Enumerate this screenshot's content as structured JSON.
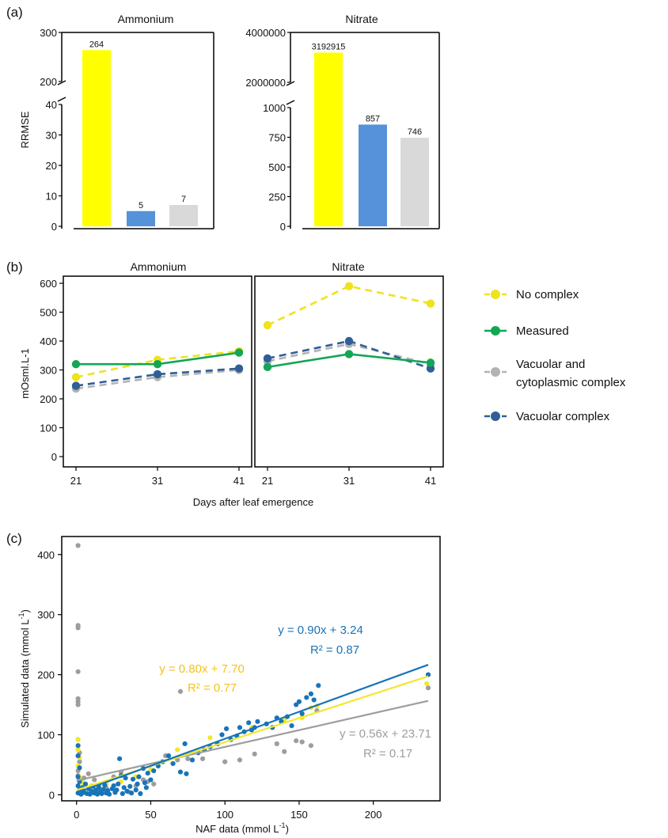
{
  "figure": {
    "panels": [
      "(a)",
      "(b)",
      "(c)"
    ]
  },
  "colors": {
    "no_complex": "#efe21f",
    "measured": "#13a654",
    "vac_cyto": "#b3b3b3",
    "vacuolar": "#2f5f96",
    "bar_yellow": "#ffff00",
    "bar_blue": "#5592d9",
    "bar_grey": "#d9d9d9",
    "sc_yellow": "#f2e82c",
    "sc_blue": "#1874b8",
    "sc_grey": "#9d9d9d",
    "eq_yellow": "#f5c21b"
  },
  "legend": [
    {
      "name": "No complex",
      "color": "#efe21f",
      "dashed": true
    },
    {
      "name": "Measured",
      "color": "#13a654",
      "dashed": false
    },
    {
      "name": "Vacuolar and\ncytoplasmic complex",
      "color": "#b3b3b3",
      "dashed": true
    },
    {
      "name": "Vacuolar complex",
      "color": "#2f5f96",
      "dashed": true
    }
  ],
  "chart_data": [
    {
      "panel": "(a)",
      "type": "bar",
      "title": "Ammonium",
      "ylabel": "RRMSE",
      "axis_break": true,
      "yticks_lower": [
        "0",
        "10",
        "20",
        "30",
        "40"
      ],
      "yticks_upper": [
        "200",
        "300"
      ],
      "ylim_lower": [
        0,
        40
      ],
      "ylim_upper": [
        200,
        300
      ],
      "bars": [
        {
          "value": 264,
          "label": "264",
          "color": "#ffff00"
        },
        {
          "value": 5,
          "label": "5",
          "color": "#5592d9"
        },
        {
          "value": 7,
          "label": "7",
          "color": "#d9d9d9"
        }
      ]
    },
    {
      "panel": "(a)",
      "type": "bar",
      "title": "Nitrate",
      "axis_break": true,
      "yticks_lower": [
        "0",
        "250",
        "500",
        "750",
        "1000"
      ],
      "yticks_upper": [
        "2000000",
        "4000000"
      ],
      "ylim_lower": [
        0,
        1000
      ],
      "ylim_upper": [
        2000000,
        4000000
      ],
      "bars": [
        {
          "value": 3192915,
          "label": "3192915",
          "color": "#ffff00"
        },
        {
          "value": 857,
          "label": "857",
          "color": "#5592d9"
        },
        {
          "value": 746,
          "label": "746",
          "color": "#d9d9d9"
        }
      ]
    },
    {
      "panel": "(b)",
      "type": "line",
      "facets": [
        "Ammonium",
        "Nitrate"
      ],
      "ylabel": "mOsml.L-1",
      "xlabel": "Days after leaf emergence",
      "x": [
        21,
        31,
        41
      ],
      "ylim": [
        0,
        620
      ],
      "yticks": [
        0,
        100,
        200,
        300,
        400,
        500,
        600
      ],
      "series": [
        {
          "name": "No complex",
          "dashed": true,
          "Ammonium": [
            275,
            335,
            365
          ],
          "Nitrate": [
            455,
            590,
            530
          ]
        },
        {
          "name": "Vacuolar and\ncytoplasmic complex",
          "dashed": true,
          "Ammonium": [
            235,
            275,
            300
          ],
          "Nitrate": [
            330,
            390,
            320
          ]
        },
        {
          "name": "Vacuolar complex",
          "dashed": true,
          "Ammonium": [
            245,
            285,
            305
          ],
          "Nitrate": [
            340,
            400,
            305
          ]
        },
        {
          "name": "Measured",
          "dashed": false,
          "Ammonium": [
            320,
            320,
            360
          ],
          "Nitrate": [
            310,
            355,
            325
          ]
        }
      ]
    },
    {
      "panel": "(c)",
      "type": "scatter",
      "xlabel": "NAF data (mmol L",
      "ylabel": "Simulated data (mmol L",
      "unit_sup": "-1",
      "unit_close": ")",
      "xlim": [
        -10,
        245
      ],
      "ylim": [
        -10,
        430
      ],
      "xticks": [
        0,
        50,
        100,
        150,
        200
      ],
      "yticks": [
        0,
        100,
        200,
        300,
        400
      ],
      "equations": [
        {
          "eq": "y = 0.90x + 3.24",
          "r2": "R² = 0.87",
          "color": "#1874b8"
        },
        {
          "eq": "y = 0.80x + 7.70",
          "r2": "R² = 0.77",
          "color": "#f5c21b"
        },
        {
          "eq": "y = 0.56x + 23.71",
          "r2": "R² = 0.17",
          "color": "#9d9d9d"
        }
      ],
      "fits": [
        {
          "slope": 0.56,
          "intercept": 23.71,
          "x": [
            0,
            237
          ],
          "color": "#9d9d9d"
        },
        {
          "slope": 0.8,
          "intercept": 7.7,
          "x": [
            0,
            237
          ],
          "color": "#f2e82c"
        },
        {
          "slope": 0.9,
          "intercept": 3.24,
          "x": [
            0,
            237
          ],
          "color": "#1874b8"
        }
      ],
      "series": [
        {
          "color": "#9d9d9d",
          "points": [
            [
              1,
              415
            ],
            [
              1,
              282
            ],
            [
              1,
              278
            ],
            [
              1,
              205
            ],
            [
              1,
              160
            ],
            [
              1,
              155
            ],
            [
              1,
              150
            ],
            [
              1,
              92
            ],
            [
              2,
              70
            ],
            [
              2,
              55
            ],
            [
              1,
              40
            ],
            [
              1,
              32
            ],
            [
              2,
              25
            ],
            [
              3,
              22
            ],
            [
              5,
              28
            ],
            [
              8,
              35
            ],
            [
              12,
              25
            ],
            [
              15,
              15
            ],
            [
              20,
              12
            ],
            [
              25,
              30
            ],
            [
              30,
              38
            ],
            [
              35,
              5
            ],
            [
              40,
              15
            ],
            [
              45,
              25
            ],
            [
              48,
              22
            ],
            [
              52,
              18
            ],
            [
              60,
              65
            ],
            [
              68,
              58
            ],
            [
              70,
              172
            ],
            [
              75,
              60
            ],
            [
              85,
              60
            ],
            [
              100,
              55
            ],
            [
              110,
              58
            ],
            [
              120,
              68
            ],
            [
              135,
              85
            ],
            [
              140,
              72
            ],
            [
              148,
              90
            ],
            [
              152,
              88
            ],
            [
              158,
              82
            ],
            [
              162,
              140
            ],
            [
              237,
              178
            ]
          ]
        },
        {
          "color": "#f2e82c",
          "points": [
            [
              1,
              92
            ],
            [
              1,
              75
            ],
            [
              2,
              62
            ],
            [
              1,
              48
            ],
            [
              2,
              30
            ],
            [
              4,
              20
            ],
            [
              10,
              15
            ],
            [
              20,
              18
            ],
            [
              30,
              22
            ],
            [
              40,
              30
            ],
            [
              50,
              42
            ],
            [
              68,
              75
            ],
            [
              90,
              95
            ],
            [
              118,
              112
            ],
            [
              140,
              125
            ],
            [
              152,
              128
            ],
            [
              158,
              145
            ],
            [
              162,
              148
            ],
            [
              236,
              185
            ]
          ]
        },
        {
          "color": "#1874b8",
          "points": [
            [
              1,
              82
            ],
            [
              1,
              65
            ],
            [
              2,
              45
            ],
            [
              1,
              30
            ],
            [
              2,
              22
            ],
            [
              1,
              15
            ],
            [
              2,
              8
            ],
            [
              1,
              3
            ],
            [
              3,
              1
            ],
            [
              4,
              12
            ],
            [
              5,
              4
            ],
            [
              6,
              18
            ],
            [
              7,
              2
            ],
            [
              8,
              10
            ],
            [
              9,
              1
            ],
            [
              10,
              6
            ],
            [
              11,
              14
            ],
            [
              12,
              3
            ],
            [
              13,
              8
            ],
            [
              14,
              1
            ],
            [
              15,
              12
            ],
            [
              16,
              5
            ],
            [
              17,
              2
            ],
            [
              18,
              9
            ],
            [
              19,
              16
            ],
            [
              20,
              3
            ],
            [
              21,
              7
            ],
            [
              22,
              1
            ],
            [
              24,
              10
            ],
            [
              25,
              15
            ],
            [
              26,
              4
            ],
            [
              27,
              8
            ],
            [
              28,
              18
            ],
            [
              29,
              60
            ],
            [
              30,
              32
            ],
            [
              31,
              2
            ],
            [
              32,
              12
            ],
            [
              33,
              28
            ],
            [
              34,
              6
            ],
            [
              36,
              14
            ],
            [
              37,
              3
            ],
            [
              38,
              26
            ],
            [
              40,
              8
            ],
            [
              41,
              18
            ],
            [
              42,
              30
            ],
            [
              43,
              2
            ],
            [
              45,
              44
            ],
            [
              46,
              20
            ],
            [
              47,
              12
            ],
            [
              48,
              36
            ],
            [
              50,
              25
            ],
            [
              52,
              40
            ],
            [
              55,
              48
            ],
            [
              58,
              55
            ],
            [
              62,
              65
            ],
            [
              65,
              52
            ],
            [
              70,
              38
            ],
            [
              73,
              85
            ],
            [
              74,
              35
            ],
            [
              78,
              58
            ],
            [
              82,
              70
            ],
            [
              86,
              75
            ],
            [
              90,
              80
            ],
            [
              95,
              85
            ],
            [
              98,
              100
            ],
            [
              101,
              110
            ],
            [
              104,
              92
            ],
            [
              108,
              98
            ],
            [
              110,
              112
            ],
            [
              113,
              105
            ],
            [
              116,
              120
            ],
            [
              118,
              108
            ],
            [
              120,
              112
            ],
            [
              122,
              122
            ],
            [
              128,
              118
            ],
            [
              132,
              112
            ],
            [
              135,
              128
            ],
            [
              138,
              122
            ],
            [
              142,
              130
            ],
            [
              145,
              115
            ],
            [
              148,
              150
            ],
            [
              150,
              155
            ],
            [
              152,
              135
            ],
            [
              155,
              162
            ],
            [
              158,
              168
            ],
            [
              160,
              158
            ],
            [
              163,
              182
            ],
            [
              237,
              200
            ]
          ]
        }
      ]
    }
  ]
}
